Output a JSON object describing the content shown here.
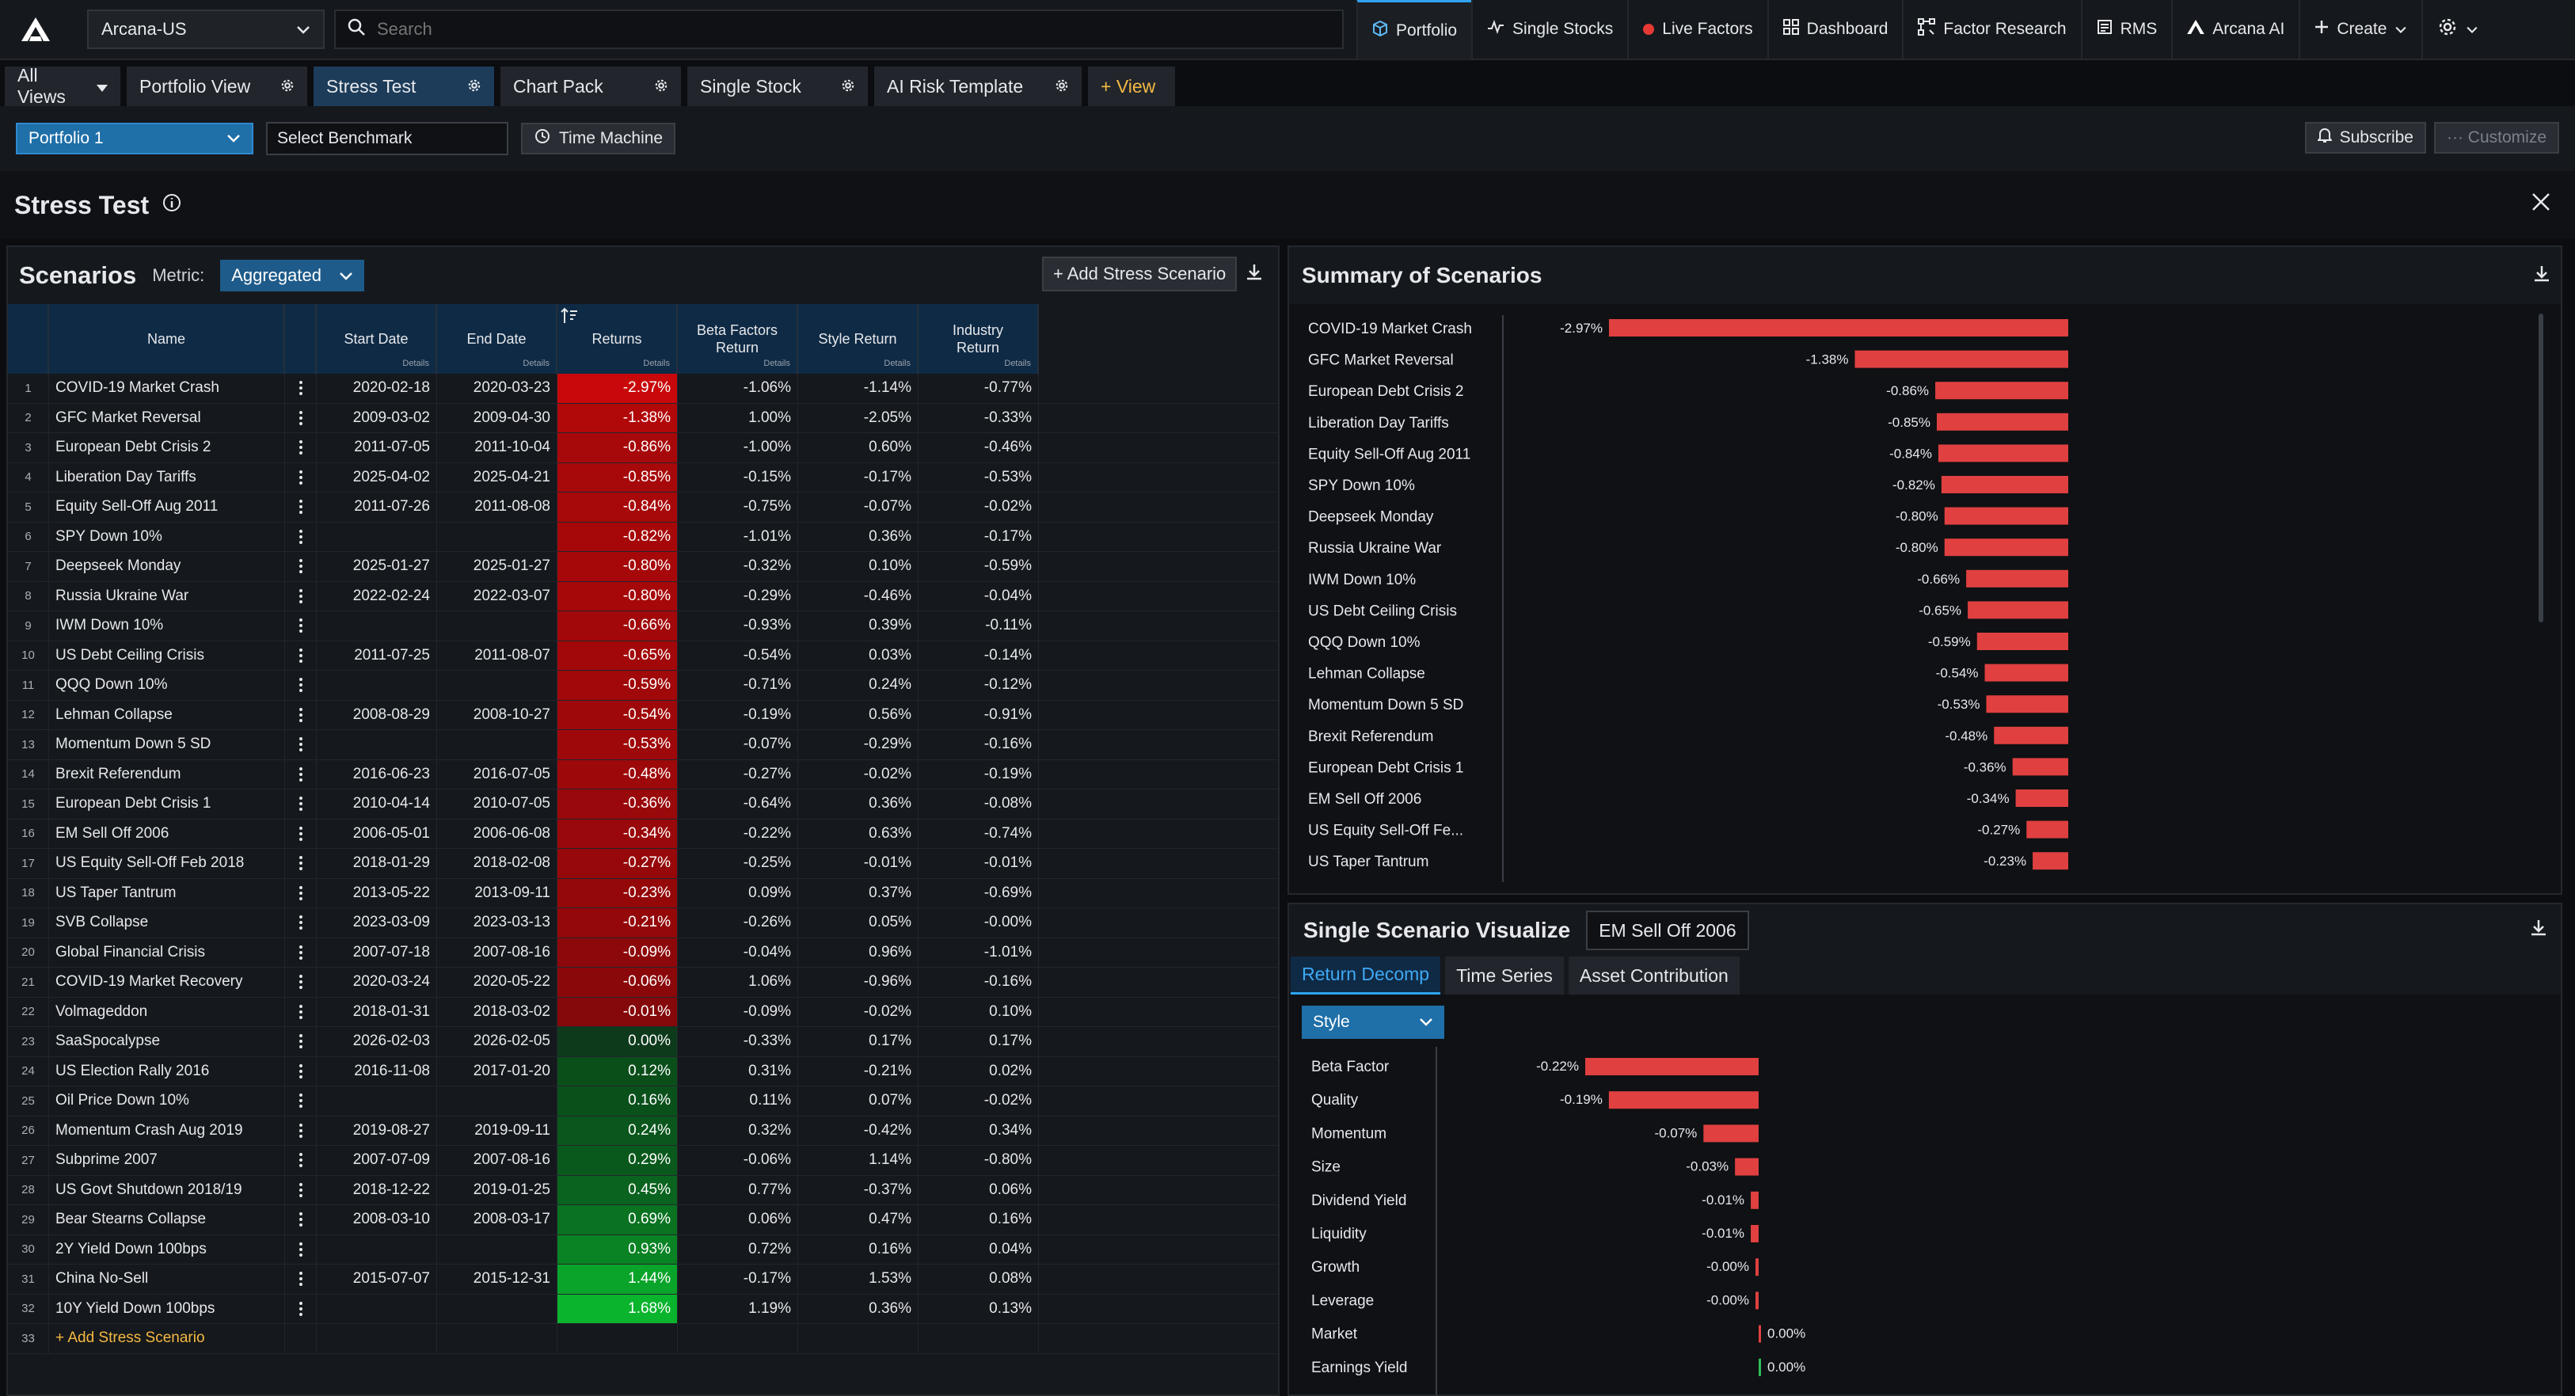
{
  "topbar": {
    "account": "Arcana-US",
    "search_placeholder": "Search",
    "nav": [
      {
        "label": "Portfolio",
        "icon": "cube-icon"
      },
      {
        "label": "Single Stocks",
        "icon": "pulse-icon"
      },
      {
        "label": "Live Factors",
        "icon": "red-dot-icon"
      },
      {
        "label": "Dashboard",
        "icon": "grid-icon"
      },
      {
        "label": "Factor Research",
        "icon": "nodes-icon"
      },
      {
        "label": "RMS",
        "icon": "document-icon"
      },
      {
        "label": "Arcana AI",
        "icon": "arcana-logo-icon"
      },
      {
        "label": "Create",
        "icon": "plus-icon"
      }
    ]
  },
  "views": {
    "all_views": "All Views",
    "tabs": [
      "Portfolio View",
      "Stress Test",
      "Chart Pack",
      "Single Stock",
      "AI Risk Template"
    ],
    "add_view": "+ View"
  },
  "toolbar": {
    "portfolio": "Portfolio 1",
    "benchmark_placeholder": "Select Benchmark",
    "time_machine": "Time Machine",
    "subscribe": "Subscribe",
    "customize": "··· Customize"
  },
  "page": {
    "title": "Stress Test"
  },
  "scenarios": {
    "title": "Scenarios",
    "metric_label": "Metric:",
    "metric_value": "Aggregated",
    "add_button": "+ Add Stress Scenario",
    "columns": {
      "name": "Name",
      "start": "Start Date",
      "end": "End Date",
      "returns": "Returns",
      "beta": "Beta Factors Return",
      "style": "Style Return",
      "industry": "Industry Return",
      "details": "Details"
    },
    "rows": [
      {
        "i": "1",
        "name": "COVID-19 Market Crash",
        "start": "2020-02-18",
        "end": "2020-03-23",
        "ret": "-2.97%",
        "beta": "-1.06%",
        "style": "-1.14%",
        "ind": "-0.77%",
        "v": -2.97
      },
      {
        "i": "2",
        "name": "GFC Market Reversal",
        "start": "2009-03-02",
        "end": "2009-04-30",
        "ret": "-1.38%",
        "beta": "1.00%",
        "style": "-2.05%",
        "ind": "-0.33%",
        "v": -1.38
      },
      {
        "i": "3",
        "name": "European Debt Crisis 2",
        "start": "2011-07-05",
        "end": "2011-10-04",
        "ret": "-0.86%",
        "beta": "-1.00%",
        "style": "0.60%",
        "ind": "-0.46%",
        "v": -0.86
      },
      {
        "i": "4",
        "name": "Liberation Day Tariffs",
        "start": "2025-04-02",
        "end": "2025-04-21",
        "ret": "-0.85%",
        "beta": "-0.15%",
        "style": "-0.17%",
        "ind": "-0.53%",
        "v": -0.85
      },
      {
        "i": "5",
        "name": "Equity Sell-Off Aug 2011",
        "start": "2011-07-26",
        "end": "2011-08-08",
        "ret": "-0.84%",
        "beta": "-0.75%",
        "style": "-0.07%",
        "ind": "-0.02%",
        "v": -0.84
      },
      {
        "i": "6",
        "name": "SPY Down 10%",
        "start": "",
        "end": "",
        "ret": "-0.82%",
        "beta": "-1.01%",
        "style": "0.36%",
        "ind": "-0.17%",
        "v": -0.82
      },
      {
        "i": "7",
        "name": "Deepseek Monday",
        "start": "2025-01-27",
        "end": "2025-01-27",
        "ret": "-0.80%",
        "beta": "-0.32%",
        "style": "0.10%",
        "ind": "-0.59%",
        "v": -0.8
      },
      {
        "i": "8",
        "name": "Russia Ukraine War",
        "start": "2022-02-24",
        "end": "2022-03-07",
        "ret": "-0.80%",
        "beta": "-0.29%",
        "style": "-0.46%",
        "ind": "-0.04%",
        "v": -0.8
      },
      {
        "i": "9",
        "name": "IWM Down 10%",
        "start": "",
        "end": "",
        "ret": "-0.66%",
        "beta": "-0.93%",
        "style": "0.39%",
        "ind": "-0.11%",
        "v": -0.66
      },
      {
        "i": "10",
        "name": "US Debt Ceiling Crisis",
        "start": "2011-07-25",
        "end": "2011-08-07",
        "ret": "-0.65%",
        "beta": "-0.54%",
        "style": "0.03%",
        "ind": "-0.14%",
        "v": -0.65
      },
      {
        "i": "11",
        "name": "QQQ Down 10%",
        "start": "",
        "end": "",
        "ret": "-0.59%",
        "beta": "-0.71%",
        "style": "0.24%",
        "ind": "-0.12%",
        "v": -0.59
      },
      {
        "i": "12",
        "name": "Lehman Collapse",
        "start": "2008-08-29",
        "end": "2008-10-27",
        "ret": "-0.54%",
        "beta": "-0.19%",
        "style": "0.56%",
        "ind": "-0.91%",
        "v": -0.54
      },
      {
        "i": "13",
        "name": "Momentum Down 5 SD",
        "start": "",
        "end": "",
        "ret": "-0.53%",
        "beta": "-0.07%",
        "style": "-0.29%",
        "ind": "-0.16%",
        "v": -0.53
      },
      {
        "i": "14",
        "name": "Brexit Referendum",
        "start": "2016-06-23",
        "end": "2016-07-05",
        "ret": "-0.48%",
        "beta": "-0.27%",
        "style": "-0.02%",
        "ind": "-0.19%",
        "v": -0.48
      },
      {
        "i": "15",
        "name": "European Debt Crisis 1",
        "start": "2010-04-14",
        "end": "2010-07-05",
        "ret": "-0.36%",
        "beta": "-0.64%",
        "style": "0.36%",
        "ind": "-0.08%",
        "v": -0.36
      },
      {
        "i": "16",
        "name": "EM Sell Off 2006",
        "start": "2006-05-01",
        "end": "2006-06-08",
        "ret": "-0.34%",
        "beta": "-0.22%",
        "style": "0.63%",
        "ind": "-0.74%",
        "v": -0.34
      },
      {
        "i": "17",
        "name": "US Equity Sell-Off Feb 2018",
        "start": "2018-01-29",
        "end": "2018-02-08",
        "ret": "-0.27%",
        "beta": "-0.25%",
        "style": "-0.01%",
        "ind": "-0.01%",
        "v": -0.27
      },
      {
        "i": "18",
        "name": "US Taper Tantrum",
        "start": "2013-05-22",
        "end": "2013-09-11",
        "ret": "-0.23%",
        "beta": "0.09%",
        "style": "0.37%",
        "ind": "-0.69%",
        "v": -0.23
      },
      {
        "i": "19",
        "name": "SVB Collapse",
        "start": "2023-03-09",
        "end": "2023-03-13",
        "ret": "-0.21%",
        "beta": "-0.26%",
        "style": "0.05%",
        "ind": "-0.00%",
        "v": -0.21
      },
      {
        "i": "20",
        "name": "Global Financial Crisis",
        "start": "2007-07-18",
        "end": "2007-08-16",
        "ret": "-0.09%",
        "beta": "-0.04%",
        "style": "0.96%",
        "ind": "-1.01%",
        "v": -0.09
      },
      {
        "i": "21",
        "name": "COVID-19 Market Recovery",
        "start": "2020-03-24",
        "end": "2020-05-22",
        "ret": "-0.06%",
        "beta": "1.06%",
        "style": "-0.96%",
        "ind": "-0.16%",
        "v": -0.06
      },
      {
        "i": "22",
        "name": "Volmageddon",
        "start": "2018-01-31",
        "end": "2018-03-02",
        "ret": "-0.01%",
        "beta": "-0.09%",
        "style": "-0.02%",
        "ind": "0.10%",
        "v": -0.01
      },
      {
        "i": "23",
        "name": "SaaSpocalypse",
        "start": "2026-02-03",
        "end": "2026-02-05",
        "ret": "0.00%",
        "beta": "-0.33%",
        "style": "0.17%",
        "ind": "0.17%",
        "v": 0.0
      },
      {
        "i": "24",
        "name": "US Election Rally 2016",
        "start": "2016-11-08",
        "end": "2017-01-20",
        "ret": "0.12%",
        "beta": "0.31%",
        "style": "-0.21%",
        "ind": "0.02%",
        "v": 0.12
      },
      {
        "i": "25",
        "name": "Oil Price Down 10%",
        "start": "",
        "end": "",
        "ret": "0.16%",
        "beta": "0.11%",
        "style": "0.07%",
        "ind": "-0.02%",
        "v": 0.16
      },
      {
        "i": "26",
        "name": "Momentum Crash Aug 2019",
        "start": "2019-08-27",
        "end": "2019-09-11",
        "ret": "0.24%",
        "beta": "0.32%",
        "style": "-0.42%",
        "ind": "0.34%",
        "v": 0.24
      },
      {
        "i": "27",
        "name": "Subprime 2007",
        "start": "2007-07-09",
        "end": "2007-08-16",
        "ret": "0.29%",
        "beta": "-0.06%",
        "style": "1.14%",
        "ind": "-0.80%",
        "v": 0.29
      },
      {
        "i": "28",
        "name": "US Govt Shutdown 2018/19",
        "start": "2018-12-22",
        "end": "2019-01-25",
        "ret": "0.45%",
        "beta": "0.77%",
        "style": "-0.37%",
        "ind": "0.06%",
        "v": 0.45
      },
      {
        "i": "29",
        "name": "Bear Stearns Collapse",
        "start": "2008-03-10",
        "end": "2008-03-17",
        "ret": "0.69%",
        "beta": "0.06%",
        "style": "0.47%",
        "ind": "0.16%",
        "v": 0.69
      },
      {
        "i": "30",
        "name": "2Y Yield Down 100bps",
        "start": "",
        "end": "",
        "ret": "0.93%",
        "beta": "0.72%",
        "style": "0.16%",
        "ind": "0.04%",
        "v": 0.93
      },
      {
        "i": "31",
        "name": "China No-Sell",
        "start": "2015-07-07",
        "end": "2015-12-31",
        "ret": "1.44%",
        "beta": "-0.17%",
        "style": "1.53%",
        "ind": "0.08%",
        "v": 1.44
      },
      {
        "i": "32",
        "name": "10Y Yield Down 100bps",
        "start": "",
        "end": "",
        "ret": "1.68%",
        "beta": "1.19%",
        "style": "0.36%",
        "ind": "0.13%",
        "v": 1.68
      }
    ],
    "add_row": {
      "i": "33",
      "label": "+ Add Stress Scenario"
    }
  },
  "summary": {
    "title": "Summary of Scenarios",
    "chart_data": {
      "type": "bar",
      "orientation": "horizontal",
      "categories": [
        "COVID-19 Market Crash",
        "GFC Market Reversal",
        "European Debt Crisis 2",
        "Liberation Day Tariffs",
        "Equity Sell-Off Aug 2011",
        "SPY Down 10%",
        "Deepseek Monday",
        "Russia Ukraine War",
        "IWM Down 10%",
        "US Debt Ceiling Crisis",
        "QQQ Down 10%",
        "Lehman Collapse",
        "Momentum Down 5 SD",
        "Brexit Referendum",
        "European Debt Crisis 1",
        "EM Sell Off 2006",
        "US Equity Sell-Off Fe...",
        "US Taper Tantrum"
      ],
      "values": [
        -2.97,
        -1.38,
        -0.86,
        -0.85,
        -0.84,
        -0.82,
        -0.8,
        -0.8,
        -0.66,
        -0.65,
        -0.59,
        -0.54,
        -0.53,
        -0.48,
        -0.36,
        -0.34,
        -0.27,
        -0.23
      ],
      "labels": [
        "-2.97%",
        "-1.38%",
        "-0.86%",
        "-0.85%",
        "-0.84%",
        "-0.82%",
        "-0.80%",
        "-0.80%",
        "-0.66%",
        "-0.65%",
        "-0.59%",
        "-0.54%",
        "-0.53%",
        "-0.48%",
        "-0.36%",
        "-0.34%",
        "-0.27%",
        "-0.23%"
      ],
      "bar_color": "#e04040"
    }
  },
  "single": {
    "title": "Single Scenario Visualize",
    "scenario": "EM Sell Off 2006",
    "tabs": [
      "Return Decomp",
      "Time Series",
      "Asset Contribution"
    ],
    "group": "Style",
    "chart_data": {
      "type": "bar",
      "orientation": "horizontal",
      "categories": [
        "Beta Factor",
        "Quality",
        "Momentum",
        "Size",
        "Dividend Yield",
        "Liquidity",
        "Growth",
        "Leverage",
        "Market",
        "Earnings Yield"
      ],
      "values": [
        -0.22,
        -0.19,
        -0.07,
        -0.03,
        -0.01,
        -0.01,
        -0.004,
        -0.004,
        0.002,
        0.001
      ],
      "labels": [
        "-0.22%",
        "-0.19%",
        "-0.07%",
        "-0.03%",
        "-0.01%",
        "-0.01%",
        "-0.00%",
        "-0.00%",
        "0.00%",
        "0.00%"
      ],
      "neg_color": "#e04040",
      "pos_color": "#2fbf5a"
    }
  },
  "colors": {
    "accent": "#2ea3f2",
    "negative": "#e04040",
    "positive": "#2fbf5a",
    "header_bg": "#0f2a45"
  }
}
